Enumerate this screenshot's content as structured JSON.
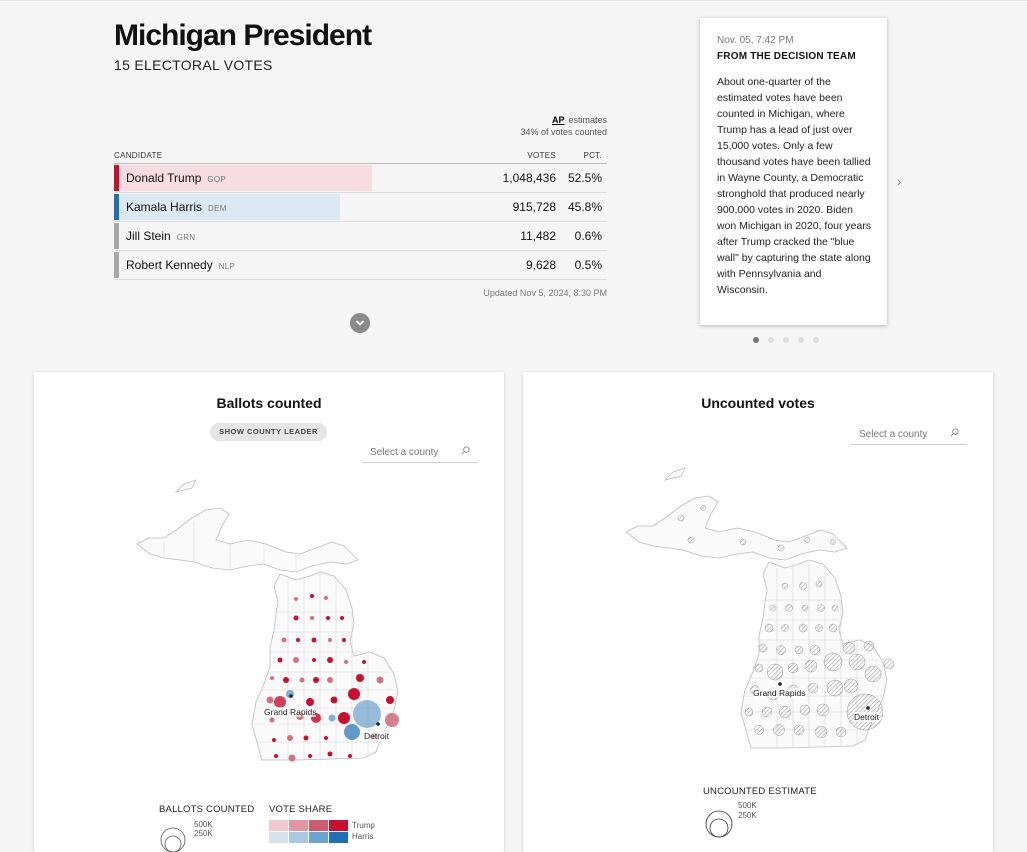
{
  "header": {
    "title": "Michigan President",
    "subtitle": "15 ELECTORAL VOTES"
  },
  "estimate": {
    "ap_logo": "AP",
    "label": "estimates",
    "counted": "34% of votes counted"
  },
  "table": {
    "headers": {
      "candidate": "CANDIDATE",
      "votes": "VOTES",
      "pct": "PCT."
    },
    "rows": [
      {
        "name": "Donald Trump",
        "party": "GOP",
        "votes": "1,048,436",
        "pct": "52.5%",
        "share": 0.525
      },
      {
        "name": "Kamala Harris",
        "party": "DEM",
        "votes": "915,728",
        "pct": "45.8%",
        "share": 0.458
      },
      {
        "name": "Jill Stein",
        "party": "GRN",
        "votes": "11,482",
        "pct": "0.6%",
        "share": 0.006
      },
      {
        "name": "Robert Kennedy",
        "party": "NLP",
        "votes": "9,628",
        "pct": "0.5%",
        "share": 0.005
      }
    ],
    "updated": "Updated Nov 5, 2024, 8:30 PM"
  },
  "card": {
    "time": "Nov. 05, 7:42 PM",
    "team": "FROM THE DECISION TEAM",
    "body": "About one-quarter of the estimated votes have been counted in Michigan, where Trump has a lead of just over 15,000 votes. Only a few thousand votes have been tallied in Wayne County, a Democratic stronghold that produced nearly 900,000 votes in 2020. Biden won Michigan in 2020, four years after Trump cracked the \"blue wall\" by capturing the state along with Pennsylvania and Wisconsin.",
    "next": "›"
  },
  "colors": {
    "gop": "#c8102e",
    "gop_light": "#f7dde1",
    "dem": "#1f6fb4",
    "dem_light": "#dce9f5",
    "other": "#a8a8a8"
  },
  "panel_left": {
    "title": "Ballots counted",
    "pill": "SHOW COUNTY LEADER",
    "search_placeholder": "Select a county",
    "city1": "Grand Rapids",
    "city2": "Detroit",
    "legend_counted": "BALLOTS COUNTED",
    "legend_share": "VOTE SHARE",
    "size_500": "500K",
    "size_250": "250K",
    "share_trump": "Trump",
    "share_harris": "Harris"
  },
  "panel_right": {
    "title": "Uncounted votes",
    "search_placeholder": "Select a county",
    "city1": "Grand Rapids",
    "city2": "Detroit",
    "legend_title": "UNCOUNTED ESTIMATE",
    "size_500": "500K",
    "size_250": "250K"
  }
}
